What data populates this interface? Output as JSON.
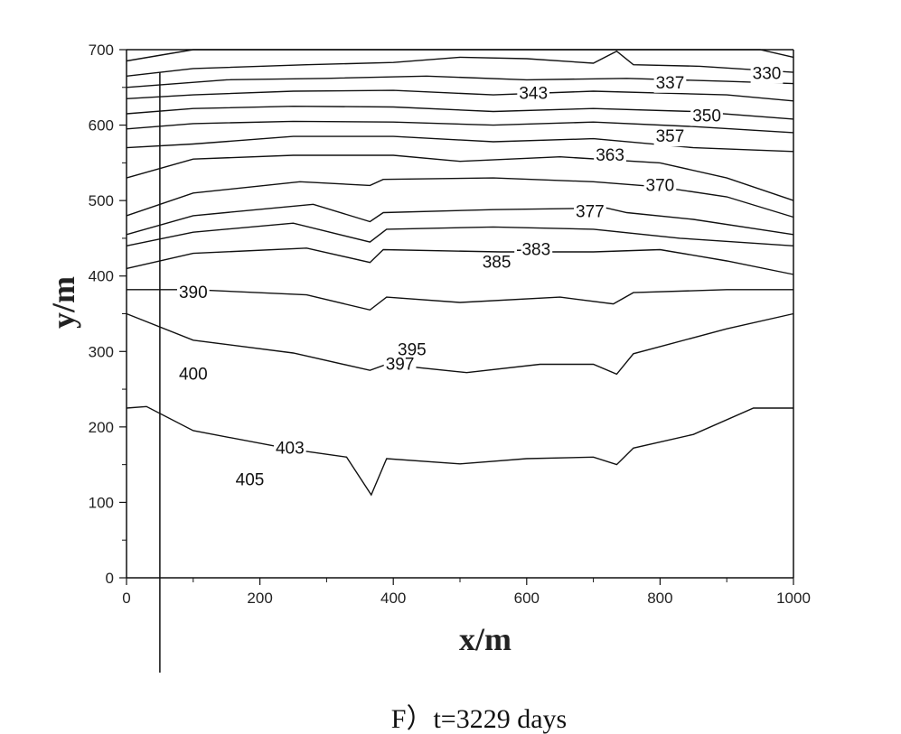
{
  "caption": "F）t=3229 days",
  "chart_data": {
    "type": "contour",
    "xlabel": "x/m",
    "ylabel": "y/m",
    "xlim": [
      0,
      1000
    ],
    "ylim": [
      0,
      700
    ],
    "x_ticks": [
      0,
      200,
      400,
      600,
      800,
      1000
    ],
    "y_ticks": [
      0,
      100,
      200,
      300,
      400,
      500,
      600,
      700
    ],
    "x_tick_labels": [
      "0",
      "200",
      "400",
      "600",
      "800",
      "1000"
    ],
    "y_tick_labels": [
      "0",
      "100",
      "200",
      "300",
      "400",
      "500",
      "600",
      "700"
    ],
    "grid": false,
    "vertical_line_x": 50,
    "contours": [
      {
        "points": [
          [
            0,
            685
          ],
          [
            100,
            700
          ],
          [
            300,
            700
          ],
          [
            500,
            700
          ],
          [
            700,
            700
          ],
          [
            800,
            700
          ],
          [
            950,
            700
          ],
          [
            1000,
            690
          ]
        ]
      },
      {
        "points": [
          [
            0,
            665
          ],
          [
            100,
            675
          ],
          [
            270,
            680
          ],
          [
            400,
            683
          ],
          [
            500,
            690
          ],
          [
            600,
            688
          ],
          [
            700,
            682
          ],
          [
            735,
            698
          ],
          [
            760,
            680
          ],
          [
            860,
            678
          ],
          [
            1000,
            670
          ]
        ]
      },
      {
        "points": [
          [
            0,
            650
          ],
          [
            150,
            660
          ],
          [
            300,
            662
          ],
          [
            450,
            665
          ],
          [
            600,
            660
          ],
          [
            750,
            662
          ],
          [
            900,
            658
          ],
          [
            1000,
            655
          ]
        ]
      },
      {
        "points": [
          [
            0,
            635
          ],
          [
            100,
            640
          ],
          [
            250,
            645
          ],
          [
            400,
            646
          ],
          [
            550,
            640
          ],
          [
            700,
            645
          ],
          [
            900,
            640
          ],
          [
            1000,
            632
          ]
        ]
      },
      {
        "points": [
          [
            0,
            615
          ],
          [
            100,
            622
          ],
          [
            250,
            625
          ],
          [
            400,
            624
          ],
          [
            550,
            618
          ],
          [
            700,
            622
          ],
          [
            850,
            618
          ],
          [
            1000,
            608
          ]
        ]
      },
      {
        "points": [
          [
            0,
            595
          ],
          [
            100,
            602
          ],
          [
            250,
            605
          ],
          [
            400,
            604
          ],
          [
            550,
            600
          ],
          [
            700,
            604
          ],
          [
            850,
            598
          ],
          [
            1000,
            590
          ]
        ]
      },
      {
        "points": [
          [
            0,
            570
          ],
          [
            100,
            575
          ],
          [
            250,
            585
          ],
          [
            400,
            585
          ],
          [
            550,
            578
          ],
          [
            700,
            582
          ],
          [
            850,
            570
          ],
          [
            1000,
            565
          ]
        ]
      },
      {
        "points": [
          [
            0,
            530
          ],
          [
            100,
            555
          ],
          [
            250,
            560
          ],
          [
            400,
            560
          ],
          [
            500,
            552
          ],
          [
            650,
            558
          ],
          [
            800,
            550
          ],
          [
            900,
            530
          ],
          [
            1000,
            500
          ]
        ]
      },
      {
        "points": [
          [
            0,
            480
          ],
          [
            100,
            510
          ],
          [
            260,
            525
          ],
          [
            365,
            520
          ],
          [
            385,
            528
          ],
          [
            550,
            530
          ],
          [
            700,
            525
          ],
          [
            800,
            518
          ],
          [
            900,
            505
          ],
          [
            1000,
            478
          ]
        ]
      },
      {
        "points": [
          [
            0,
            455
          ],
          [
            100,
            480
          ],
          [
            280,
            495
          ],
          [
            365,
            472
          ],
          [
            385,
            484
          ],
          [
            550,
            488
          ],
          [
            720,
            490
          ],
          [
            750,
            484
          ],
          [
            850,
            475
          ],
          [
            1000,
            455
          ]
        ]
      },
      {
        "points": [
          [
            0,
            440
          ],
          [
            100,
            458
          ],
          [
            250,
            470
          ],
          [
            365,
            445
          ],
          [
            390,
            462
          ],
          [
            550,
            465
          ],
          [
            700,
            462
          ],
          [
            830,
            450
          ],
          [
            1000,
            440
          ]
        ]
      },
      {
        "points": [
          [
            0,
            410
          ],
          [
            100,
            430
          ],
          [
            270,
            437
          ],
          [
            365,
            418
          ],
          [
            385,
            435
          ],
          [
            560,
            432
          ],
          [
            700,
            432
          ],
          [
            800,
            435
          ],
          [
            900,
            420
          ],
          [
            1000,
            402
          ]
        ]
      },
      {
        "points": [
          [
            0,
            382
          ],
          [
            100,
            382
          ],
          [
            270,
            375
          ],
          [
            365,
            355
          ],
          [
            390,
            372
          ],
          [
            500,
            365
          ],
          [
            650,
            372
          ],
          [
            730,
            363
          ],
          [
            760,
            378
          ],
          [
            900,
            382
          ],
          [
            1000,
            382
          ]
        ]
      },
      {
        "points": [
          [
            0,
            350
          ],
          [
            100,
            315
          ],
          [
            250,
            298
          ],
          [
            365,
            275
          ],
          [
            390,
            283
          ],
          [
            510,
            272
          ],
          [
            620,
            283
          ],
          [
            700,
            283
          ],
          [
            735,
            270
          ],
          [
            760,
            297
          ],
          [
            900,
            330
          ],
          [
            1000,
            350
          ]
        ]
      },
      {
        "points": [
          [
            0,
            225
          ],
          [
            30,
            227
          ],
          [
            100,
            195
          ],
          [
            250,
            170
          ],
          [
            330,
            160
          ],
          [
            367,
            110
          ],
          [
            390,
            158
          ],
          [
            500,
            151
          ],
          [
            600,
            158
          ],
          [
            700,
            160
          ],
          [
            735,
            150
          ],
          [
            760,
            172
          ],
          [
            850,
            190
          ],
          [
            940,
            225
          ],
          [
            1000,
            225
          ]
        ]
      }
    ],
    "labels": [
      {
        "text": "330",
        "x": 960,
        "y": 668
      },
      {
        "text": "337",
        "x": 815,
        "y": 656
      },
      {
        "text": "343",
        "x": 610,
        "y": 642
      },
      {
        "text": "350",
        "x": 870,
        "y": 612
      },
      {
        "text": "357",
        "x": 815,
        "y": 585
      },
      {
        "text": "363",
        "x": 725,
        "y": 560
      },
      {
        "text": "370",
        "x": 800,
        "y": 520
      },
      {
        "text": "377",
        "x": 695,
        "y": 485
      },
      {
        "text": "-383",
        "x": 610,
        "y": 435
      },
      {
        "text": "385",
        "x": 555,
        "y": 418
      },
      {
        "text": "390",
        "x": 100,
        "y": 378
      },
      {
        "text": "395",
        "x": 428,
        "y": 302
      },
      {
        "text": "397",
        "x": 410,
        "y": 283
      },
      {
        "text": "400",
        "x": 100,
        "y": 270
      },
      {
        "text": "403",
        "x": 245,
        "y": 172
      },
      {
        "text": "405",
        "x": 185,
        "y": 130
      }
    ]
  }
}
